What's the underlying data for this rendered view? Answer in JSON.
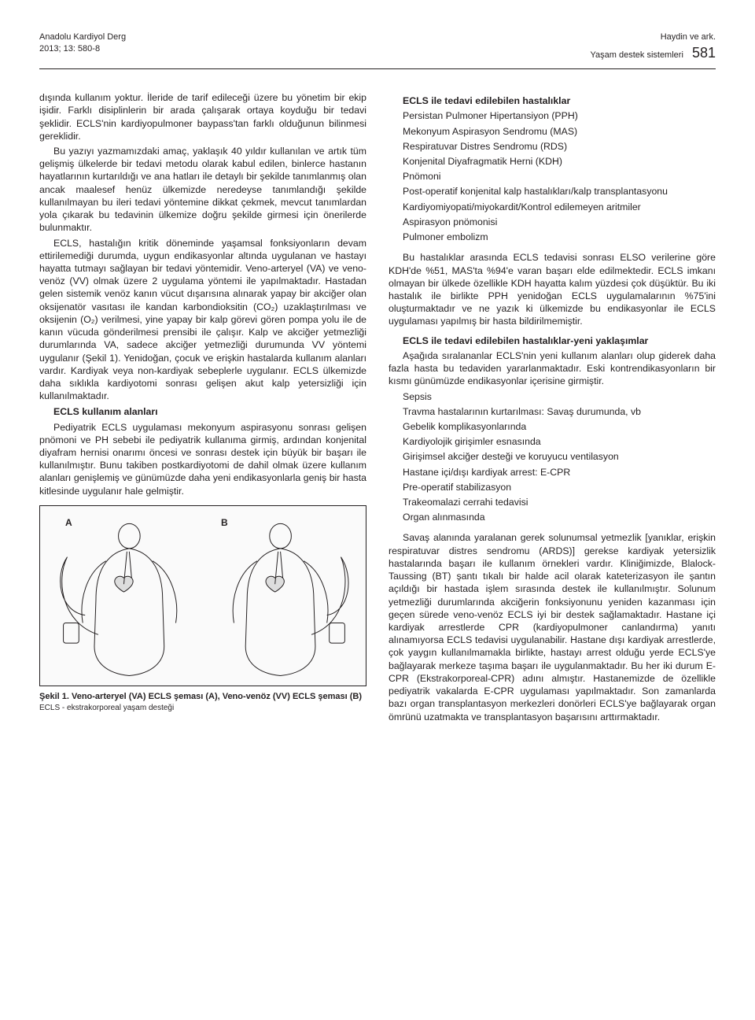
{
  "header": {
    "journal": "Anadolu Kardiyol Derg",
    "issue": "2013; 13: 580-8",
    "authors": "Haydin ve ark.",
    "short_title": "Yaşam destek sistemleri",
    "page_number": "581"
  },
  "left_column": {
    "p1": "dışında kullanım yoktur. İleride de tarif edileceği üzere bu yönetim bir ekip işidir. Farklı disiplinlerin bir arada çalışarak ortaya koyduğu bir tedavi şeklidir. ECLS'nin kardiyopulmoner baypass'tan farklı olduğunun bilinmesi gereklidir.",
    "p2": "Bu yazıyı yazmamızdaki amaç, yaklaşık 40 yıldır kullanılan ve artık tüm gelişmiş ülkelerde bir tedavi metodu olarak kabul edilen, binlerce hastanın hayatlarının kurtarıldığı ve ana hatları ile detaylı bir şekilde tanımlanmış olan ancak maalesef henüz ülkemizde neredeyse tanımlandığı şekilde kullanılmayan bu ileri tedavi yöntemine dikkat çekmek, mevcut tanımlardan yola çıkarak bu tedavinin ülkemize doğru şekilde girmesi için önerilerde bulunmaktır.",
    "p3": "ECLS, hastalığın kritik döneminde yaşamsal fonksiyonların devam ettirilemediği durumda, uygun endikasyonlar altında uygulanan ve hastayı hayatta tutmayı sağlayan bir tedavi yöntemidir. Veno-arteryel (VA) ve veno-venöz (VV) olmak üzere 2 uygulama yöntemi ile yapılmaktadır. Hastadan gelen sistemik venöz kanın vücut dışarısına alınarak yapay bir akciğer olan oksijenatör vasıtası ile kandan karbondioksitin (CO₂) uzaklaştırılması ve oksijenin (O₂) verilmesi, yine yapay bir kalp görevi gören pompa yolu ile de kanın vücuda gönderilmesi prensibi ile çalışır. Kalp ve akciğer yetmezliği durumlarında VA, sadece akciğer yetmezliği durumunda VV yöntemi uygulanır (Şekil 1). Yenidoğan, çocuk ve erişkin hastalarda kullanım alanları vardır. Kardiyak veya non-kardiyak sebeplerle uygulanır. ECLS ülkemizde daha sıklıkla kardiyotomi sonrası gelişen akut kalp yetersizliği için kullanılmaktadır.",
    "sec1_title": "ECLS kullanım alanları",
    "sec1_body": "Pediyatrik ECLS uygulaması mekonyum aspirasyonu sonrası gelişen pnömoni ve PH sebebi ile pediyatrik kullanıma girmiş, ardından konjenital diyafram hernisi onarımı öncesi ve sonrası destek için büyük bir başarı ile kullanılmıştır. Bunu takiben postkardiyotomi de dahil olmak üzere kullanım alanları genişlemiş ve günümüzde daha yeni endikasyonlarla geniş bir hasta kitlesinde uygulanır hale gelmiştir.",
    "figure": {
      "label_a": "A",
      "label_b": "B",
      "caption_bold": "Şekil 1. Veno-arteryel (VA) ECLS şeması (A), Veno-venöz (VV) ECLS şeması (B)",
      "caption_small": "ECLS - ekstrakorporeal yaşam desteği"
    }
  },
  "right_column": {
    "sec1_title": "ECLS ile tedavi edilebilen hastalıklar",
    "items1": [
      "Persistan Pulmoner Hipertansiyon (PPH)",
      "Mekonyum Aspirasyon Sendromu (MAS)",
      "Respiratuvar Distres Sendromu (RDS)",
      "Konjenital Diyafragmatik Herni (KDH)",
      "Pnömoni",
      "Post-operatif konjenital kalp hastalıkları/kalp transplantasyonu",
      "Kardiyomiyopati/miyokardit/Kontrol edilemeyen aritmiler",
      "Aspirasyon pnömonisi",
      "Pulmoner embolizm"
    ],
    "p2": "Bu hastalıklar arasında ECLS tedavisi sonrası ELSO verilerine göre KDH'de %51, MAS'ta %94'e varan başarı elde edilmektedir. ECLS imkanı olmayan bir ülkede özellikle KDH hayatta kalım yüzdesi çok düşüktür. Bu iki hastalık ile birlikte PPH yenidoğan ECLS uygulamalarının %75'ini oluşturmaktadır ve ne yazık ki ülkemizde bu endikasyonlar ile ECLS uygulaması yapılmış bir hasta bildirilmemiştir.",
    "sec2_title": "ECLS ile tedavi edilebilen hastalıklar-yeni yaklaşımlar",
    "p3": "Aşağıda sıralananlar ECLS'nin yeni kullanım alanları olup giderek daha fazla hasta bu tedaviden yararlanmaktadır. Eski kontrendikasyonların bir kısmı günümüzde endikasyonlar içerisine girmiştir.",
    "items2": [
      "Sepsis",
      "Travma hastalarının kurtarılması: Savaş durumunda, vb",
      "Gebelik komplikasyonlarında",
      "Kardiyolojik girişimler esnasında",
      "Girişimsel akciğer desteği ve koruyucu ventilasyon",
      "Hastane içi/dışı kardiyak arrest: E-CPR",
      "Pre-operatif stabilizasyon",
      "Trakeomalazi cerrahi tedavisi",
      "Organ alınmasında"
    ],
    "p4": "Savaş alanında yaralanan gerek solunumsal yetmezlik [yanıklar, erişkin respiratuvar distres sendromu (ARDS)] gerekse kardiyak yetersizlik hastalarında başarı ile kullanım örnekleri vardır. Kliniğimizde, Blalock-Taussing (BT) şantı tıkalı bir halde acil olarak kateterizasyon ile şantın açıldığı bir hastada işlem sırasında destek ile kullanılmıştır. Solunum yetmezliği durumlarında akciğerin fonksiyonunu yeniden kazanması için geçen sürede veno-venöz ECLS iyi bir destek sağlamaktadır. Hastane içi kardiyak arrestlerde CPR (kardiyopulmoner canlandırma) yanıtı alınamıyorsa ECLS tedavisi uygulanabilir. Hastane dışı kardiyak arrestlerde, çok yaygın kullanılmamakla birlikte, hastayı arrest olduğu yerde ECLS'ye bağlayarak merkeze taşıma başarı ile uygulanmaktadır. Bu her iki durum E-CPR (Ekstrakorporeal-CPR) adını almıştır. Hastanemizde de özellikle pediyatrik vakalarda E-CPR uygulaması yapılmaktadır. Son zamanlarda bazı organ transplantasyon merkezleri donörleri ECLS'ye bağlayarak organ ömrünü uzatmakta ve transplantasyon başarısını arttırmaktadır."
  }
}
